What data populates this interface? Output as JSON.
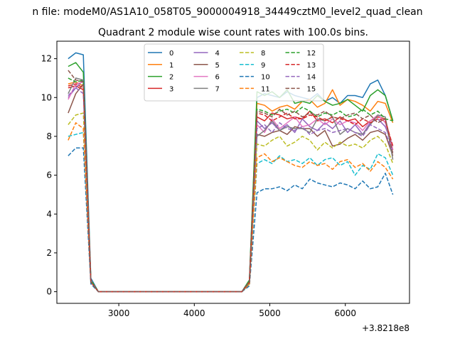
{
  "chart_data": {
    "type": "line",
    "suptitle": "n file: modeM0/AS1A10_058T05_9000004918_34449cztM0_level2_quad_clean",
    "title": "Quadrant 2 module wise count rates with 100.0s bins.",
    "xlabel": "",
    "ylabel": "",
    "offset_label": "+3.8218e8",
    "xlim": [
      2180,
      6850
    ],
    "ylim": [
      -0.6,
      12.9
    ],
    "xticks": [
      3000,
      4000,
      5000,
      6000
    ],
    "yticks": [
      0,
      2,
      4,
      6,
      8,
      10,
      12
    ],
    "grid": false,
    "legend": {
      "placement": "top-center",
      "columns": 4
    },
    "x": [
      2330,
      2430,
      2530,
      2630,
      2730,
      2830,
      2930,
      3030,
      3130,
      3230,
      3330,
      3430,
      3530,
      3630,
      3730,
      3830,
      3930,
      4030,
      4130,
      4230,
      4330,
      4430,
      4530,
      4630,
      4730,
      4830,
      4930,
      5030,
      5130,
      5230,
      5330,
      5430,
      5530,
      5630,
      5730,
      5830,
      5930,
      6030,
      6130,
      6230,
      6330,
      6430,
      6530,
      6630
    ],
    "series": [
      {
        "name": "0",
        "color": "#1f77b4",
        "style": "solid",
        "values": [
          12.0,
          12.3,
          12.2,
          0.7,
          0,
          0,
          0,
          0,
          0,
          0,
          0,
          0,
          0,
          0,
          0,
          0,
          0,
          0,
          0,
          0,
          0,
          0,
          0,
          0,
          0.6,
          10.0,
          10.2,
          10.1,
          10.0,
          10.3,
          10.1,
          10.0,
          9.9,
          10.2,
          9.8,
          10.0,
          9.7,
          10.1,
          10.1,
          10.0,
          10.7,
          10.9,
          10.1,
          8.8
        ]
      },
      {
        "name": "1",
        "color": "#ff7f0e",
        "style": "solid",
        "values": [
          10.7,
          10.8,
          10.6,
          0.6,
          0,
          0,
          0,
          0,
          0,
          0,
          0,
          0,
          0,
          0,
          0,
          0,
          0,
          0,
          0,
          0,
          0,
          0,
          0,
          0,
          0.5,
          9.7,
          9.6,
          9.3,
          9.5,
          9.6,
          9.4,
          9.8,
          9.9,
          9.5,
          9.7,
          10.4,
          9.6,
          9.9,
          9.8,
          9.6,
          9.3,
          9.8,
          9.7,
          8.7
        ]
      },
      {
        "name": "2",
        "color": "#2ca02c",
        "style": "solid",
        "values": [
          11.6,
          11.8,
          11.3,
          0.6,
          0,
          0,
          0,
          0,
          0,
          0,
          0,
          0,
          0,
          0,
          0,
          0,
          0,
          0,
          0,
          0,
          0,
          0,
          0,
          0,
          0.6,
          10.3,
          10.1,
          10.3,
          10.0,
          10.4,
          9.7,
          9.8,
          9.7,
          10.1,
          9.8,
          9.6,
          9.7,
          9.9,
          9.6,
          9.3,
          10.1,
          10.4,
          10.1,
          8.8
        ]
      },
      {
        "name": "3",
        "color": "#d62728",
        "style": "solid",
        "values": [
          10.5,
          10.6,
          10.4,
          0.5,
          0,
          0,
          0,
          0,
          0,
          0,
          0,
          0,
          0,
          0,
          0,
          0,
          0,
          0,
          0,
          0,
          0,
          0,
          0,
          0,
          0.5,
          9.0,
          8.8,
          9.2,
          9.1,
          8.9,
          9.0,
          8.9,
          9.3,
          8.8,
          8.9,
          8.7,
          9.0,
          8.8,
          8.9,
          8.5,
          8.8,
          9.0,
          8.9,
          7.3
        ]
      },
      {
        "name": "4",
        "color": "#9467bd",
        "style": "solid",
        "values": [
          10.0,
          10.5,
          10.9,
          0.5,
          0,
          0,
          0,
          0,
          0,
          0,
          0,
          0,
          0,
          0,
          0,
          0,
          0,
          0,
          0,
          0,
          0,
          0,
          0,
          0,
          0.5,
          8.8,
          8.4,
          8.7,
          8.3,
          8.6,
          8.2,
          8.9,
          8.5,
          8.3,
          8.7,
          8.4,
          8.8,
          8.2,
          8.6,
          8.1,
          8.7,
          8.9,
          8.5,
          7.5
        ]
      },
      {
        "name": "5",
        "color": "#8c564b",
        "style": "solid",
        "values": [
          9.2,
          10.2,
          10.7,
          0.5,
          0,
          0,
          0,
          0,
          0,
          0,
          0,
          0,
          0,
          0,
          0,
          0,
          0,
          0,
          0,
          0,
          0,
          0,
          0,
          0,
          0.4,
          8.1,
          8.0,
          8.2,
          8.3,
          8.1,
          8.5,
          8.4,
          8.4,
          8.0,
          8.3,
          7.5,
          7.6,
          7.9,
          8.1,
          7.8,
          8.2,
          8.3,
          8.1,
          7.0
        ]
      },
      {
        "name": "6",
        "color": "#e377c2",
        "style": "solid",
        "values": [
          9.9,
          10.7,
          10.8,
          0.6,
          0,
          0,
          0,
          0,
          0,
          0,
          0,
          0,
          0,
          0,
          0,
          0,
          0,
          0,
          0,
          0,
          0,
          0,
          0,
          0,
          0.5,
          8.6,
          8.2,
          8.9,
          8.4,
          8.7,
          9.0,
          8.5,
          8.6,
          8.9,
          8.6,
          8.9,
          8.6,
          8.8,
          8.7,
          8.3,
          8.8,
          9.1,
          8.7,
          7.3
        ]
      },
      {
        "name": "7",
        "color": "#7f7f7f",
        "style": "solid",
        "values": [
          10.2,
          11.0,
          10.9,
          0.6,
          0,
          0,
          0,
          0,
          0,
          0,
          0,
          0,
          0,
          0,
          0,
          0,
          0,
          0,
          0,
          0,
          0,
          0,
          0,
          0,
          0.5,
          8.0,
          8.3,
          8.8,
          8.3,
          8.5,
          8.4,
          8.4,
          8.2,
          8.9,
          8.8,
          9.0,
          8.1,
          8.4,
          8.2,
          8.1,
          8.6,
          9.1,
          9.0,
          6.8
        ]
      },
      {
        "name": "8",
        "color": "#bcbd22",
        "style": "dashed",
        "values": [
          8.6,
          9.1,
          9.2,
          0.5,
          0,
          0,
          0,
          0,
          0,
          0,
          0,
          0,
          0,
          0,
          0,
          0,
          0,
          0,
          0,
          0,
          0,
          0,
          0,
          0,
          0.4,
          7.6,
          7.5,
          7.8,
          8.0,
          7.5,
          7.7,
          8.0,
          7.8,
          7.3,
          7.7,
          7.4,
          7.7,
          7.5,
          7.6,
          7.4,
          7.8,
          8.0,
          7.6,
          6.6
        ]
      },
      {
        "name": "9",
        "color": "#17becf",
        "style": "dashed",
        "values": [
          8.0,
          8.1,
          8.2,
          0.5,
          0,
          0,
          0,
          0,
          0,
          0,
          0,
          0,
          0,
          0,
          0,
          0,
          0,
          0,
          0,
          0,
          0,
          0,
          0,
          0,
          0.4,
          6.6,
          6.8,
          6.6,
          7.0,
          6.7,
          6.8,
          6.6,
          6.9,
          6.5,
          6.8,
          6.9,
          6.5,
          6.7,
          6.0,
          6.5,
          6.3,
          7.1,
          6.9,
          6.0
        ]
      },
      {
        "name": "10",
        "color": "#1f77b4",
        "style": "dashed",
        "values": [
          7.0,
          7.4,
          7.4,
          0.4,
          0,
          0,
          0,
          0,
          0,
          0,
          0,
          0,
          0,
          0,
          0,
          0,
          0,
          0,
          0,
          0,
          0,
          0,
          0,
          0,
          0.3,
          5.1,
          5.3,
          5.3,
          5.4,
          5.2,
          5.5,
          5.3,
          5.8,
          5.6,
          5.5,
          5.4,
          5.6,
          5.5,
          5.3,
          5.7,
          5.3,
          5.4,
          6.1,
          5.0
        ]
      },
      {
        "name": "11",
        "color": "#ff7f0e",
        "style": "dashed",
        "values": [
          7.8,
          8.7,
          8.4,
          0.5,
          0,
          0,
          0,
          0,
          0,
          0,
          0,
          0,
          0,
          0,
          0,
          0,
          0,
          0,
          0,
          0,
          0,
          0,
          0,
          0,
          0.4,
          6.9,
          7.1,
          6.7,
          6.9,
          6.7,
          6.5,
          6.4,
          6.7,
          6.5,
          6.6,
          6.3,
          6.7,
          6.8,
          6.4,
          6.6,
          6.2,
          6.7,
          6.4,
          5.8
        ]
      },
      {
        "name": "12",
        "color": "#2ca02c",
        "style": "dashed",
        "values": [
          11.0,
          10.8,
          10.9,
          0.6,
          0,
          0,
          0,
          0,
          0,
          0,
          0,
          0,
          0,
          0,
          0,
          0,
          0,
          0,
          0,
          0,
          0,
          0,
          0,
          0,
          0.5,
          9.4,
          9.3,
          9.1,
          9.3,
          9.4,
          9.2,
          9.5,
          9.3,
          9.0,
          9.2,
          9.1,
          9.3,
          9.0,
          9.1,
          9.4,
          9.1,
          9.3,
          8.9,
          8.8
        ]
      },
      {
        "name": "13",
        "color": "#d62728",
        "style": "dashed",
        "values": [
          10.6,
          10.7,
          10.5,
          0.5,
          0,
          0,
          0,
          0,
          0,
          0,
          0,
          0,
          0,
          0,
          0,
          0,
          0,
          0,
          0,
          0,
          0,
          0,
          0,
          0,
          0.5,
          9.2,
          9.1,
          8.8,
          9.0,
          9.2,
          8.9,
          8.9,
          9.1,
          9.0,
          8.8,
          9.0,
          8.9,
          8.8,
          8.6,
          8.9,
          8.7,
          8.9,
          8.8,
          7.5
        ]
      },
      {
        "name": "14",
        "color": "#9467bd",
        "style": "dashed",
        "values": [
          10.1,
          10.5,
          10.2,
          0.5,
          0,
          0,
          0,
          0,
          0,
          0,
          0,
          0,
          0,
          0,
          0,
          0,
          0,
          0,
          0,
          0,
          0,
          0,
          0,
          0,
          0.5,
          8.4,
          8.6,
          8.2,
          8.7,
          8.4,
          8.3,
          8.5,
          8.1,
          8.3,
          8.4,
          8.2,
          8.3,
          8.4,
          8.2,
          8.0,
          8.6,
          8.4,
          8.2,
          7.2
        ]
      },
      {
        "name": "15",
        "color": "#8c564b",
        "style": "dashed",
        "values": [
          11.4,
          10.9,
          10.8,
          0.5,
          0,
          0,
          0,
          0,
          0,
          0,
          0,
          0,
          0,
          0,
          0,
          0,
          0,
          0,
          0,
          0,
          0,
          0,
          0,
          0,
          0.5,
          9.3,
          9.2,
          9.0,
          9.4,
          9.1,
          9.3,
          9.0,
          9.2,
          9.1,
          9.3,
          9.0,
          8.9,
          9.1,
          9.2,
          8.9,
          9.1,
          8.7,
          8.9,
          7.1
        ]
      }
    ]
  }
}
